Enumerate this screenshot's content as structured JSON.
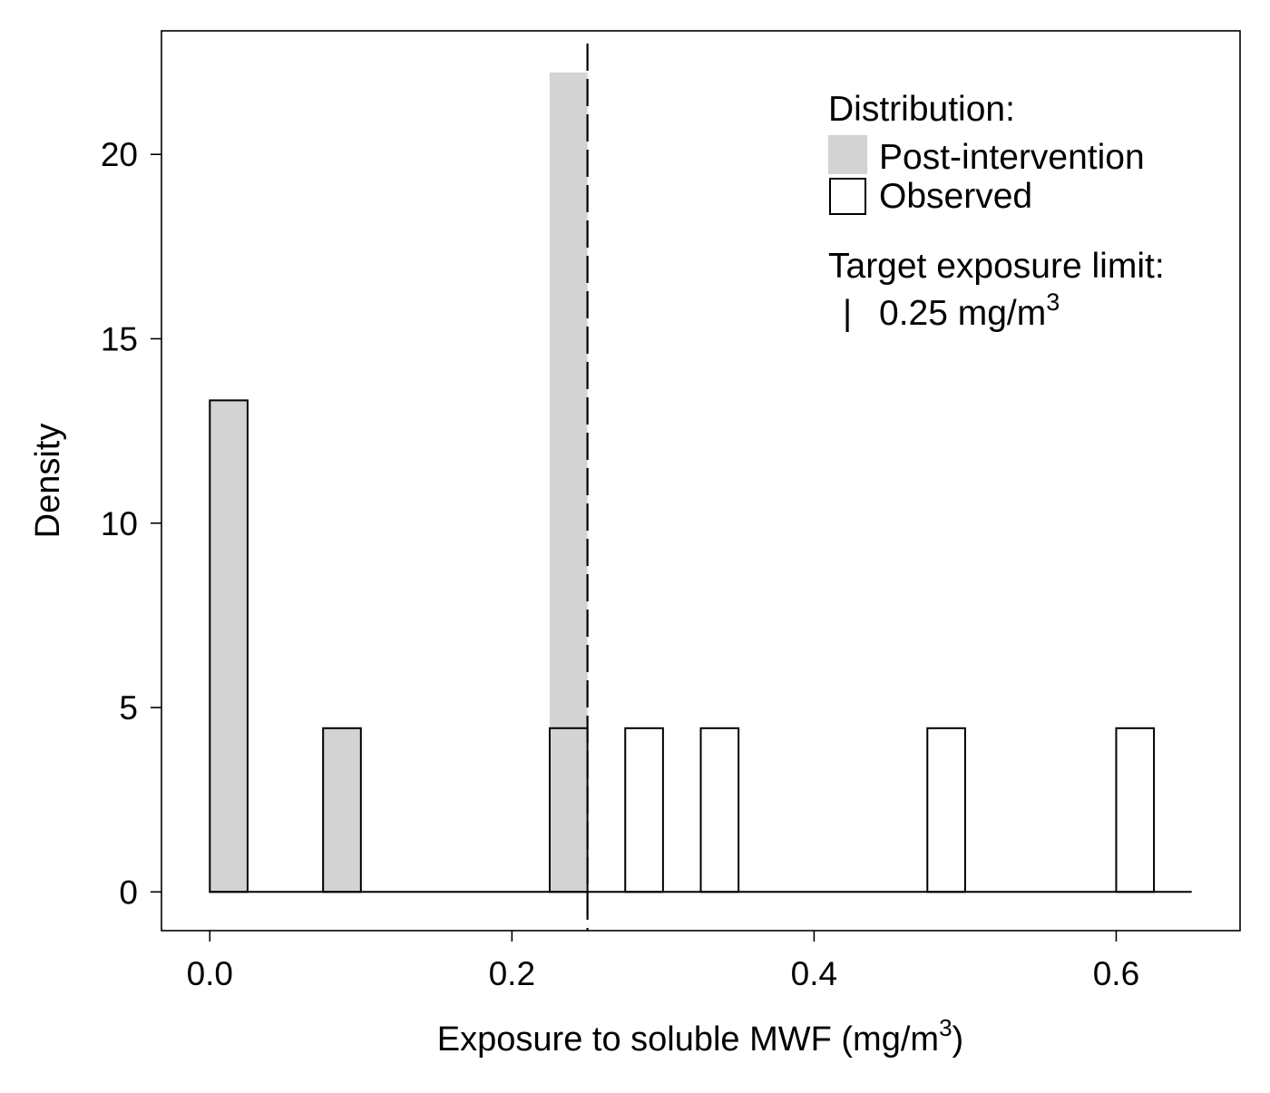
{
  "chart_data": {
    "type": "bar",
    "xlabel": "Exposure to soluble MWF (mg/m",
    "xlabel_sup": "3",
    "xlabel_end": ")",
    "ylabel": "Density",
    "xlim": [
      -0.032,
      0.682
    ],
    "ylim": [
      -1.05,
      23.35
    ],
    "x_ticks": [
      0.0,
      0.2,
      0.4,
      0.6
    ],
    "x_tick_labels": [
      "0.0",
      "0.2",
      "0.4",
      "0.6"
    ],
    "y_ticks": [
      0,
      5,
      10,
      15,
      20
    ],
    "y_tick_labels": [
      "0",
      "5",
      "10",
      "15",
      "20"
    ],
    "bin_width": 0.025,
    "x_range_end": 0.65,
    "series": [
      {
        "name": "Post-intervention",
        "fill": "#d3d3d3",
        "bins": [
          {
            "x0": 0.0,
            "x1": 0.025,
            "density": 13.33
          },
          {
            "x0": 0.075,
            "x1": 0.1,
            "density": 4.44
          },
          {
            "x0": 0.225,
            "x1": 0.25,
            "density": 22.22
          }
        ]
      },
      {
        "name": "Observed",
        "fill": "none",
        "stroke": "#000000",
        "bins": [
          {
            "x0": 0.0,
            "x1": 0.025,
            "density": 13.33
          },
          {
            "x0": 0.075,
            "x1": 0.1,
            "density": 4.44
          },
          {
            "x0": 0.225,
            "x1": 0.25,
            "density": 4.44
          },
          {
            "x0": 0.275,
            "x1": 0.3,
            "density": 4.44
          },
          {
            "x0": 0.325,
            "x1": 0.35,
            "density": 4.44
          },
          {
            "x0": 0.475,
            "x1": 0.5,
            "density": 4.44
          },
          {
            "x0": 0.6,
            "x1": 0.625,
            "density": 4.44
          }
        ]
      }
    ],
    "reference_line": {
      "x": 0.25,
      "style": "dashed"
    },
    "legend": {
      "placement": "top-right",
      "distribution_title": "Distribution:",
      "post_label": "Post-intervention",
      "observed_label": "Observed",
      "limit_title": "Target exposure limit:",
      "limit_label": "0.25 mg/m",
      "limit_label_sup": "3",
      "limit_symbol": "|"
    }
  }
}
